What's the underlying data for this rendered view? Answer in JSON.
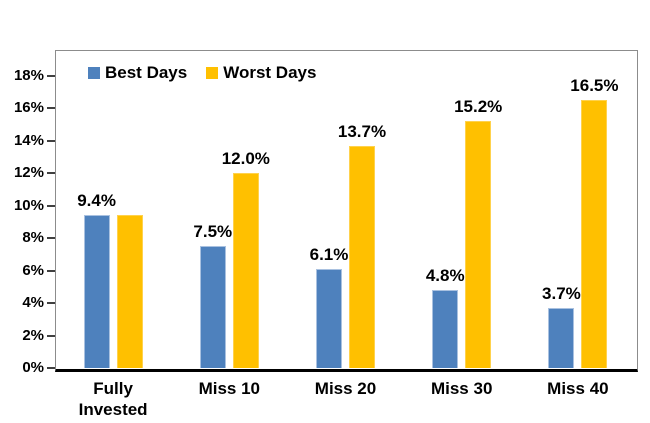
{
  "chart_data": {
    "type": "bar",
    "title": "",
    "categories": [
      "Fully Invested",
      "Miss 10",
      "Miss 20",
      "Miss 30",
      "Miss 40"
    ],
    "series": [
      {
        "name": "Best Days",
        "color": "#4E81BD",
        "border_color": "#A9C1E0",
        "values": [
          9.4,
          7.5,
          6.1,
          4.8,
          3.7
        ],
        "labels": [
          "9.4%",
          "7.5%",
          "6.1%",
          "4.8%",
          "3.7%"
        ]
      },
      {
        "name": "Worst Days",
        "color": "#FFC000",
        "border_color": "#FFD24D",
        "values": [
          9.4,
          12.0,
          13.7,
          15.2,
          16.5
        ],
        "labels": [
          "",
          "12.0%",
          "13.7%",
          "15.2%",
          "16.5%"
        ]
      }
    ],
    "y_axis": {
      "min": 0,
      "max": 18,
      "step": 2,
      "suffix": "%"
    },
    "ylim": [
      0,
      19.6
    ],
    "legend_position": "top-left-inside",
    "grid": false,
    "colors": {
      "plot_border": "#8C8C8C",
      "axis_line": "#000000",
      "tick_mark": "#404040",
      "text": "#000000",
      "background": "#FFFFFF"
    }
  }
}
